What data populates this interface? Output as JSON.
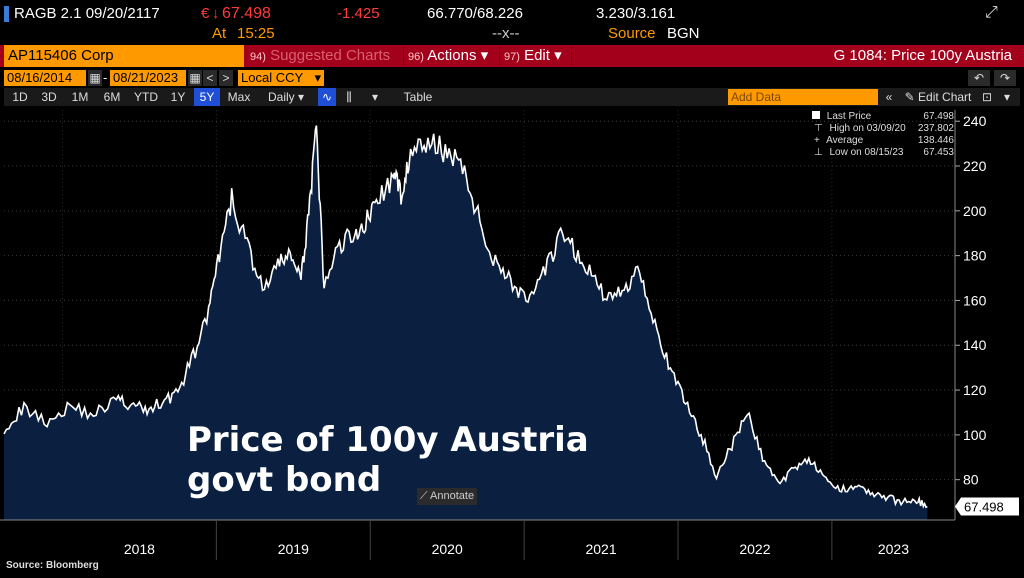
{
  "quote": {
    "ticker": "RAGB 2.1 09/20/2117",
    "currency": "€",
    "arrow": "↓",
    "last": "67.498",
    "at_label": "At",
    "time": "15:25",
    "change": "-1.425",
    "bid_ask": "66.770/68.226",
    "bid_ask_size": "--x--",
    "yields": "3.230/3.161",
    "source_label": "Source",
    "source": "BGN"
  },
  "cmdbar": {
    "security": "AP115406 Corp",
    "suggested_num": "94)",
    "suggested": "Suggested Charts",
    "actions_num": "96)",
    "actions": "Actions ▾",
    "edit_num": "97)",
    "edit": "Edit ▾",
    "function": "G 1084: Price 100y Austria"
  },
  "daterow": {
    "start": "08/16/2014",
    "end": "08/21/2023",
    "prev": "<",
    "next": ">",
    "currency": "Local CCY",
    "undo": "↶",
    "redo": "↷"
  },
  "timeframes": [
    {
      "label": "1D"
    },
    {
      "label": "3D"
    },
    {
      "label": "1M"
    },
    {
      "label": "6M"
    },
    {
      "label": "YTD"
    },
    {
      "label": "1Y"
    },
    {
      "label": "5Y"
    },
    {
      "label": "Max"
    }
  ],
  "toolbar": {
    "frequency": "Daily ▾",
    "table": "Table",
    "add_data": "Add Data",
    "collapse": "«",
    "edit_chart": "✎ Edit Chart",
    "dropdown": "▾"
  },
  "legend": [
    {
      "label": "Last Price",
      "value": "67.498"
    },
    {
      "label": "High on 03/09/20",
      "value": "237.802"
    },
    {
      "label": "Average",
      "value": "138.446"
    },
    {
      "label": "Low on 08/15/23",
      "value": "67.453"
    }
  ],
  "annotation": {
    "line1": "Price of 100y Austria",
    "line2": "govt bond",
    "button": "Annotate"
  },
  "source_note": "Source: Bloomberg",
  "colors": {
    "line": "#ffffff",
    "fill": "#0b2040",
    "accent": "#ff9900",
    "bar": "#a3001b"
  },
  "chart_data": {
    "type": "area",
    "series": [
      {
        "x": [
          2017.62,
          2017.75,
          2017.9,
          2018.05,
          2018.2,
          2018.35,
          2018.45,
          2018.55,
          2018.65,
          2018.75,
          2018.85,
          2018.95,
          2019.02,
          2019.1,
          2019.2,
          2019.3,
          2019.4,
          2019.48,
          2019.55,
          2019.6,
          2019.65,
          2019.7,
          2019.8,
          2019.9,
          2019.97,
          2020.05,
          2020.15,
          2020.2,
          2020.25,
          2020.35,
          2020.45,
          2020.55,
          2020.65,
          2020.75,
          2020.85,
          2020.95,
          2021.05,
          2021.15,
          2021.25,
          2021.35,
          2021.45,
          2021.55,
          2021.65,
          2021.75,
          2021.85,
          2021.95,
          2022.05,
          2022.15,
          2022.25,
          2022.35,
          2022.45,
          2022.55,
          2022.65,
          2022.75,
          2022.85,
          2022.95,
          2023.05,
          2023.15,
          2023.25,
          2023.35,
          2023.45,
          2023.55,
          2023.62
        ],
        "y": [
          103,
          112,
          106,
          113,
          109,
          116,
          113,
          111,
          115,
          119,
          135,
          155,
          180,
          205,
          185,
          165,
          175,
          182,
          168,
          200,
          235,
          165,
          185,
          190,
          195,
          205,
          215,
          208,
          222,
          230,
          228,
          225,
          210,
          185,
          175,
          165,
          160,
          175,
          190,
          180,
          170,
          160,
          165,
          175,
          150,
          128,
          115,
          100,
          82,
          95,
          110,
          90,
          78,
          85,
          90,
          80,
          75,
          78,
          74,
          72,
          70,
          71,
          68
        ],
        "name": ""
      }
    ],
    "xlabel": "",
    "ylabel": "",
    "xticks": [
      "2018",
      "2019",
      "2020",
      "2021",
      "2022",
      "2023"
    ],
    "xlim": [
      2017.62,
      2023.8
    ],
    "yticks": [
      80,
      100,
      120,
      140,
      160,
      180,
      200,
      220,
      240
    ],
    "ylim": [
      62,
      245
    ],
    "last_value_label": "67.498",
    "grid": true
  }
}
